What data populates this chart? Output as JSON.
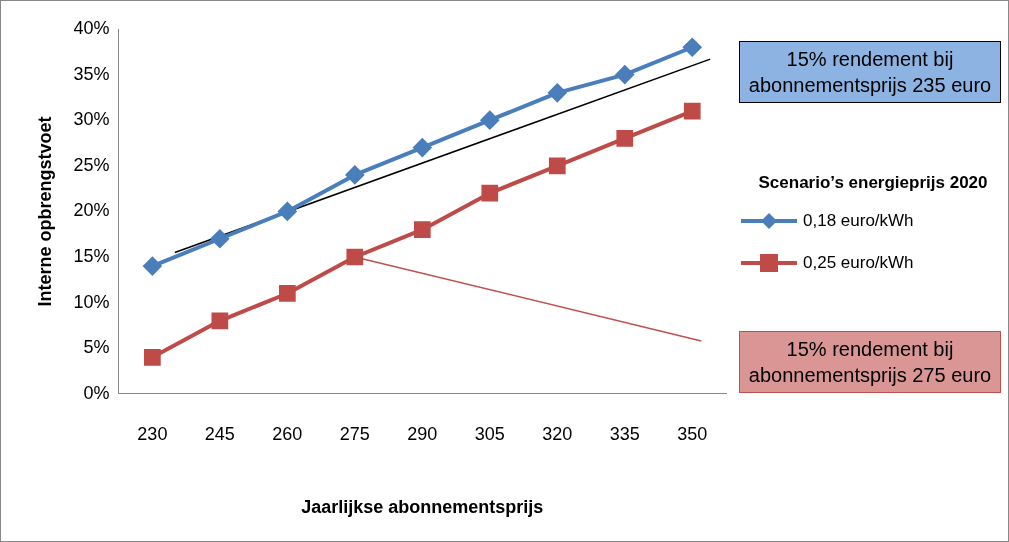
{
  "chart_data": {
    "type": "line",
    "xlabel": "Jaarlijkse abonnementsprijs",
    "ylabel": "Interne opbrengstvoet",
    "legend_title": "Scenario’s energieprijs 2020",
    "legend": "right",
    "grid": false,
    "x": [
      230,
      245,
      260,
      275,
      290,
      305,
      320,
      335,
      350
    ],
    "xlim": [
      222.5,
      357.5
    ],
    "xticks": [
      230,
      245,
      260,
      275,
      290,
      305,
      320,
      335,
      350
    ],
    "ylim": [
      0,
      40
    ],
    "yticks": [
      {
        "value": 0,
        "label": "0%"
      },
      {
        "value": 5,
        "label": "5%"
      },
      {
        "value": 10,
        "label": "10%"
      },
      {
        "value": 15,
        "label": "15%"
      },
      {
        "value": 20,
        "label": "20%"
      },
      {
        "value": 25,
        "label": "25%"
      },
      {
        "value": 30,
        "label": "30%"
      },
      {
        "value": 35,
        "label": "35%"
      },
      {
        "value": 40,
        "label": "40%"
      }
    ],
    "series": [
      {
        "name": "0,18 euro/kWh",
        "color": "#4a7ebb",
        "marker": "diamond",
        "values": [
          14,
          17,
          20,
          24,
          27,
          30,
          33,
          35,
          38
        ]
      },
      {
        "name": "0,25 euro/kWh",
        "color": "#be4b48",
        "marker": "square",
        "values": [
          4,
          8,
          11,
          15,
          18,
          22,
          25,
          28,
          31
        ]
      },
      {
        "type": "line",
        "color": "#000000",
        "marker": "none",
        "x": [
          235,
          354
        ],
        "values": [
          15.5,
          36.7
        ]
      },
      {
        "type": "line",
        "color": "#c0504d",
        "marker": "none",
        "x": [
          275,
          352
        ],
        "values": [
          15,
          5.8
        ]
      }
    ],
    "annotations": [
      "15% rendement bij abonnementsprijs 235 euro",
      "15% rendement bij abonnementsprijs 275 euro"
    ]
  }
}
